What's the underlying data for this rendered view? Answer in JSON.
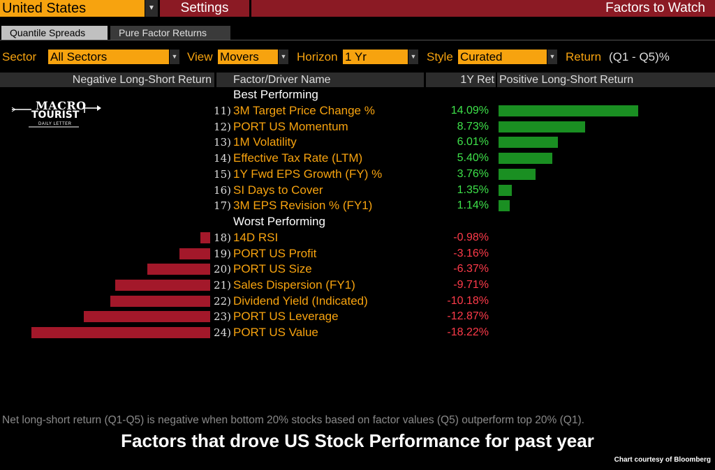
{
  "topbar": {
    "country": "United States",
    "settings": "Settings",
    "title": "Factors to Watch"
  },
  "tabs": [
    "Quantile Spreads",
    "Pure Factor Returns"
  ],
  "filters": {
    "sector_label": "Sector",
    "sector_value": "All Sectors",
    "view_label": "View",
    "view_value": "Movers",
    "horizon_label": "Horizon",
    "horizon_value": "1 Yr",
    "style_label": "Style",
    "style_value": "Curated",
    "return_label": "Return",
    "return_value": "(Q1 - Q5)%"
  },
  "header": {
    "negative": "Negative Long-Short Return",
    "factor": "Factor/Driver Name",
    "ret": "1Y Ret",
    "positive": "Positive Long-Short Return"
  },
  "sections": {
    "best": "Best Performing",
    "worst": "Worst Performing"
  },
  "logo": {
    "line1": "MACRO",
    "line2": "TOURIST",
    "line3": "DAILY LETTER"
  },
  "chart_data": {
    "type": "bar",
    "categories": [
      "3M Target Price Change %",
      "PORT US Momentum",
      "1M Volatility",
      "Effective Tax Rate (LTM)",
      "1Y Fwd EPS Growth (FY) %",
      "SI Days to Cover",
      "3M EPS Revision % (FY1)",
      "14D RSI",
      "PORT US Profit",
      "PORT US Size",
      "Sales Dispersion (FY1)",
      "Dividend Yield (Indicated)",
      "PORT US Leverage",
      "PORT US Value"
    ],
    "row_numbers": [
      "11)",
      "12)",
      "13)",
      "14)",
      "15)",
      "16)",
      "17)",
      "18)",
      "19)",
      "20)",
      "21)",
      "22)",
      "23)",
      "24)"
    ],
    "values": [
      14.09,
      8.73,
      6.01,
      5.4,
      3.76,
      1.35,
      1.14,
      -0.98,
      -3.16,
      -6.37,
      -9.71,
      -10.18,
      -12.87,
      -18.22
    ],
    "value_labels": [
      "14.09%",
      "8.73%",
      "6.01%",
      "5.40%",
      "3.76%",
      "1.35%",
      "1.14%",
      "-0.98%",
      "-3.16%",
      "-6.37%",
      "-9.71%",
      "-10.18%",
      "-12.87%",
      "-18.22%"
    ],
    "positive_color": "#1a8f22",
    "negative_color": "#a3182a",
    "positive_text_color": "#3ee24a",
    "negative_text_color": "#ff3b4a"
  },
  "footnote": "Net long-short return (Q1-Q5) is negative when bottom 20% stocks based on factor values (Q5) outperform top 20% (Q1).",
  "caption": "Factors that drove US Stock Performance for past year",
  "credit": "Chart courtesy of Bloomberg"
}
